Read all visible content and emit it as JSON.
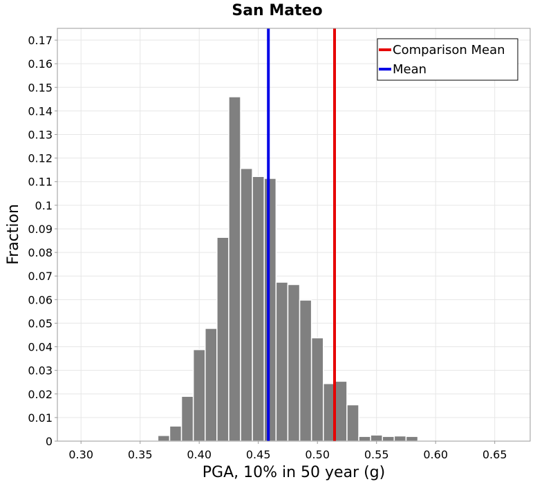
{
  "chart_data": {
    "type": "bar",
    "title": "San Mateo",
    "xlabel": "PGA, 10% in 50 year (g)",
    "ylabel": "Fraction",
    "xlim": [
      0.28,
      0.68
    ],
    "ylim": [
      0,
      0.175
    ],
    "grid": true,
    "legend_placement": "top-right",
    "x_ticks": [
      {
        "value": 0.3,
        "label": "0.30"
      },
      {
        "value": 0.35,
        "label": "0.35"
      },
      {
        "value": 0.4,
        "label": "0.40"
      },
      {
        "value": 0.45,
        "label": "0.45"
      },
      {
        "value": 0.5,
        "label": "0.50"
      },
      {
        "value": 0.55,
        "label": "0.55"
      },
      {
        "value": 0.6,
        "label": "0.60"
      },
      {
        "value": 0.65,
        "label": "0.65"
      }
    ],
    "y_ticks": [
      {
        "value": 0,
        "label": "0"
      },
      {
        "value": 0.01,
        "label": "0.01"
      },
      {
        "value": 0.02,
        "label": "0.02"
      },
      {
        "value": 0.03,
        "label": "0.03"
      },
      {
        "value": 0.04,
        "label": "0.04"
      },
      {
        "value": 0.05,
        "label": "0.05"
      },
      {
        "value": 0.06,
        "label": "0.06"
      },
      {
        "value": 0.07,
        "label": "0.07"
      },
      {
        "value": 0.08,
        "label": "0.08"
      },
      {
        "value": 0.09,
        "label": "0.09"
      },
      {
        "value": 0.1,
        "label": "0.1"
      },
      {
        "value": 0.11,
        "label": "0.11"
      },
      {
        "value": 0.12,
        "label": "0.12"
      },
      {
        "value": 0.13,
        "label": "0.13"
      },
      {
        "value": 0.14,
        "label": "0.14"
      },
      {
        "value": 0.15,
        "label": "0.15"
      },
      {
        "value": 0.16,
        "label": "0.16"
      },
      {
        "value": 0.17,
        "label": "0.17"
      }
    ],
    "bin_width": 0.01,
    "bins": [
      {
        "x": 0.3,
        "value": 0.0
      },
      {
        "x": 0.31,
        "value": 0.0
      },
      {
        "x": 0.32,
        "value": 0.0
      },
      {
        "x": 0.33,
        "value": 0.0
      },
      {
        "x": 0.34,
        "value": 0.0
      },
      {
        "x": 0.35,
        "value": 0.0
      },
      {
        "x": 0.36,
        "value": 0.0003
      },
      {
        "x": 0.37,
        "value": 0.0024
      },
      {
        "x": 0.38,
        "value": 0.0064
      },
      {
        "x": 0.39,
        "value": 0.019
      },
      {
        "x": 0.4,
        "value": 0.0388
      },
      {
        "x": 0.41,
        "value": 0.0478
      },
      {
        "x": 0.42,
        "value": 0.0864
      },
      {
        "x": 0.43,
        "value": 0.146
      },
      {
        "x": 0.44,
        "value": 0.1156
      },
      {
        "x": 0.45,
        "value": 0.1122
      },
      {
        "x": 0.46,
        "value": 0.1114
      },
      {
        "x": 0.47,
        "value": 0.0674
      },
      {
        "x": 0.48,
        "value": 0.0664
      },
      {
        "x": 0.49,
        "value": 0.0598
      },
      {
        "x": 0.5,
        "value": 0.0438
      },
      {
        "x": 0.51,
        "value": 0.0244
      },
      {
        "x": 0.52,
        "value": 0.0254
      },
      {
        "x": 0.53,
        "value": 0.0154
      },
      {
        "x": 0.54,
        "value": 0.002
      },
      {
        "x": 0.55,
        "value": 0.0026
      },
      {
        "x": 0.56,
        "value": 0.002
      },
      {
        "x": 0.57,
        "value": 0.0022
      },
      {
        "x": 0.58,
        "value": 0.002
      },
      {
        "x": 0.59,
        "value": 0.0004
      },
      {
        "x": 0.6,
        "value": 0.0
      },
      {
        "x": 0.61,
        "value": 0.0
      },
      {
        "x": 0.62,
        "value": 0.0
      },
      {
        "x": 0.63,
        "value": 0.0
      },
      {
        "x": 0.64,
        "value": 0.0
      },
      {
        "x": 0.65,
        "value": 0.0
      },
      {
        "x": 0.66,
        "value": 0.0
      }
    ],
    "vertical_lines": [
      {
        "name": "Comparison Mean",
        "x": 0.5145,
        "color": "#e60000"
      },
      {
        "name": "Mean",
        "x": 0.4585,
        "color": "#0000e6"
      }
    ],
    "bar_color": "#808080"
  }
}
